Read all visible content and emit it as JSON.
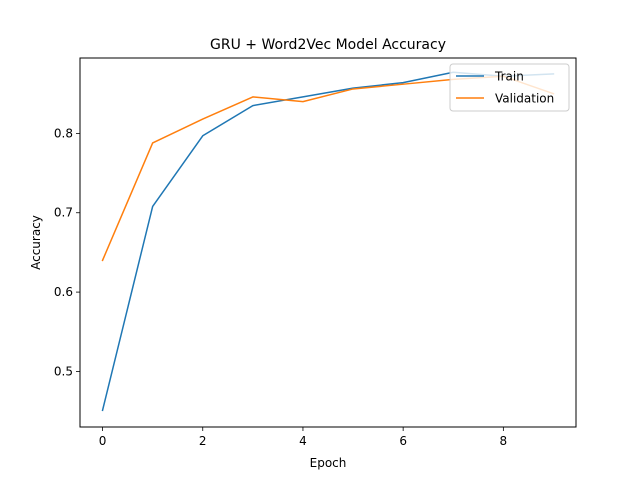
{
  "chart_data": {
    "type": "line",
    "title": "GRU + Word2Vec Model Accuracy",
    "xlabel": "Epoch",
    "ylabel": "Accuracy",
    "xlim": [
      -0.45,
      9.45
    ],
    "ylim": [
      0.43,
      0.895
    ],
    "xticks": [
      0,
      2,
      4,
      6,
      8
    ],
    "yticks": [
      0.5,
      0.6,
      0.7,
      0.8
    ],
    "x": [
      0,
      1,
      2,
      3,
      4,
      5,
      6,
      7,
      8,
      9
    ],
    "series": [
      {
        "name": "Train",
        "color": "#1f77b4",
        "values": [
          0.451,
          0.708,
          0.797,
          0.835,
          0.846,
          0.857,
          0.864,
          0.877,
          0.872,
          0.875
        ]
      },
      {
        "name": "Validation",
        "color": "#ff7f0e",
        "values": [
          0.64,
          0.788,
          0.818,
          0.846,
          0.84,
          0.856,
          0.862,
          0.868,
          0.872,
          0.85
        ]
      }
    ],
    "legend": "upper-right",
    "grid": false
  }
}
